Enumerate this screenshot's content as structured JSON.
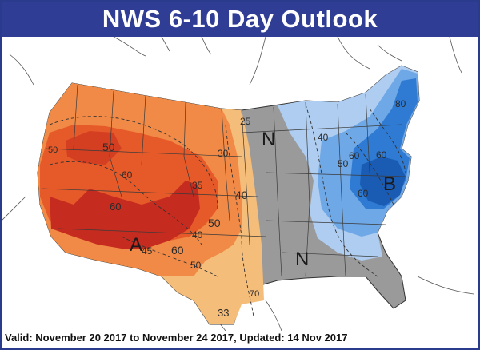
{
  "title": "NWS 6-10 Day Outlook",
  "footer": "Valid: November 20 2017 to November 24 2017, Updated: 14 Nov 2017",
  "colors": {
    "title_bg": "#2f3d95",
    "above_strong": "#c62b1f",
    "above_med": "#e65a2a",
    "above_light": "#f08a46",
    "above_pale": "#f5bd7a",
    "normal": "#9a9a9a",
    "below_pale": "#aecdf0",
    "below_light": "#6fa8e6",
    "below_med": "#2f7ad2",
    "below_strong": "#1a5cb3"
  },
  "labels": {
    "a_marker": "A",
    "b_marker": "B",
    "n_north": "N",
    "n_south": "N",
    "c25": "25",
    "c30": "30",
    "c33": "33",
    "c35": "35",
    "c40w": "40",
    "c40e": "40",
    "c40s": "40",
    "c45": "45",
    "c50n": "50",
    "c50w": "50",
    "c50c": "50",
    "c50s": "50",
    "c50e": "50",
    "c60w": "60",
    "c60c": "60",
    "c60e1": "60",
    "c60e2": "60",
    "c60e3": "60",
    "c60s": "60",
    "c70": "70",
    "c80": "80"
  }
}
